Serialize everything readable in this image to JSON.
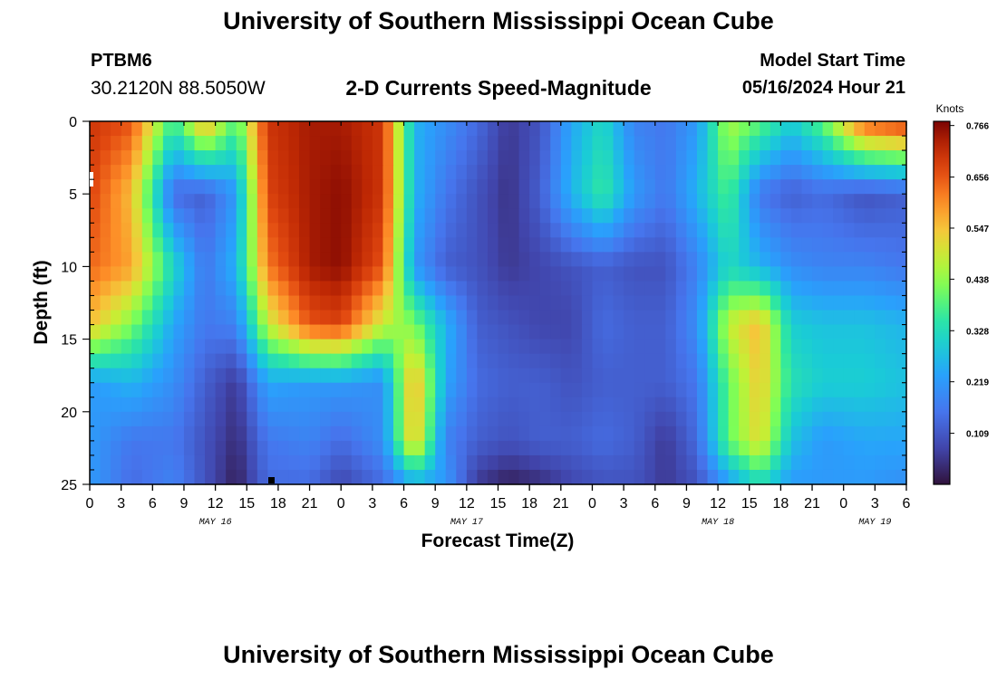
{
  "header": {
    "title": "University of Southern Mississippi Ocean Cube",
    "station": "PTBM6",
    "coordinates": "30.2120N  88.5050W",
    "subtitle": "2-D Currents Speed-Magnitude",
    "model_start_label": "Model Start Time",
    "model_start_value": "05/16/2024 Hour 21"
  },
  "footer": {
    "title": "University of Southern Mississippi Ocean Cube"
  },
  "chart_data": {
    "type": "heatmap",
    "title": "2-D Currents Speed-Magnitude",
    "xlabel": "Forecast Time(Z)",
    "ylabel": "Depth (ft)",
    "x_range_hours": [
      0,
      78
    ],
    "y_range_ft": [
      0,
      25
    ],
    "x_ticks": [
      "0",
      "3",
      "6",
      "9",
      "12",
      "15",
      "18",
      "21",
      "0",
      "3",
      "6",
      "9",
      "12",
      "15",
      "18",
      "21",
      "0",
      "3",
      "6",
      "9",
      "12",
      "15",
      "18",
      "21",
      "0",
      "3",
      "6"
    ],
    "x_day_labels": [
      {
        "hour": 12,
        "label": "MAY 16"
      },
      {
        "hour": 36,
        "label": "MAY 17"
      },
      {
        "hour": 60,
        "label": "MAY 18"
      },
      {
        "hour": 75,
        "label": "MAY 19"
      }
    ],
    "y_ticks": [
      "0",
      "5",
      "10",
      "15",
      "20",
      "25"
    ],
    "colorbar": {
      "label": "Knots",
      "range": [
        0.0,
        0.775
      ],
      "ticks": [
        "0.766",
        "0.656",
        "0.547",
        "0.438",
        "0.328",
        "0.219",
        "0.109"
      ]
    },
    "grid_hours": [
      0,
      4,
      8,
      11,
      14,
      17,
      21,
      24,
      28,
      31,
      34,
      37,
      40,
      43,
      46,
      49,
      52,
      55,
      58,
      61,
      64,
      67,
      70,
      74,
      78
    ],
    "grid_depths_ft": [
      0,
      5,
      10,
      14,
      18,
      22,
      25
    ],
    "values_knots": [
      [
        0.7,
        0.66,
        0.36,
        0.58,
        0.38,
        0.7,
        0.74,
        0.74,
        0.7,
        0.26,
        0.2,
        0.14,
        0.06,
        0.1,
        0.24,
        0.32,
        0.18,
        0.16,
        0.22,
        0.46,
        0.4,
        0.3,
        0.4,
        0.66,
        0.7
      ],
      [
        0.68,
        0.55,
        0.14,
        0.12,
        0.22,
        0.68,
        0.74,
        0.76,
        0.7,
        0.26,
        0.16,
        0.1,
        0.05,
        0.12,
        0.26,
        0.36,
        0.22,
        0.16,
        0.26,
        0.38,
        0.16,
        0.12,
        0.14,
        0.1,
        0.12
      ],
      [
        0.64,
        0.58,
        0.32,
        0.16,
        0.26,
        0.62,
        0.74,
        0.76,
        0.66,
        0.22,
        0.12,
        0.1,
        0.06,
        0.08,
        0.1,
        0.12,
        0.1,
        0.1,
        0.18,
        0.32,
        0.26,
        0.2,
        0.18,
        0.18,
        0.16
      ],
      [
        0.55,
        0.42,
        0.24,
        0.16,
        0.18,
        0.48,
        0.66,
        0.68,
        0.48,
        0.42,
        0.26,
        0.12,
        0.1,
        0.08,
        0.08,
        0.14,
        0.12,
        0.12,
        0.2,
        0.48,
        0.56,
        0.3,
        0.28,
        0.28,
        0.26
      ],
      [
        0.22,
        0.26,
        0.2,
        0.12,
        0.06,
        0.24,
        0.22,
        0.22,
        0.2,
        0.58,
        0.24,
        0.14,
        0.12,
        0.12,
        0.1,
        0.12,
        0.12,
        0.12,
        0.16,
        0.4,
        0.54,
        0.34,
        0.3,
        0.3,
        0.28
      ],
      [
        0.22,
        0.16,
        0.16,
        0.1,
        0.04,
        0.16,
        0.18,
        0.14,
        0.2,
        0.56,
        0.18,
        0.12,
        0.1,
        0.12,
        0.12,
        0.14,
        0.12,
        0.06,
        0.14,
        0.4,
        0.52,
        0.28,
        0.22,
        0.24,
        0.24
      ],
      [
        0.22,
        0.14,
        0.18,
        0.1,
        0.02,
        0.14,
        0.14,
        0.08,
        0.14,
        0.24,
        0.22,
        0.06,
        0.02,
        0.04,
        0.08,
        0.1,
        0.1,
        0.06,
        0.1,
        0.22,
        0.32,
        0.22,
        0.22,
        0.22,
        0.2
      ]
    ]
  }
}
